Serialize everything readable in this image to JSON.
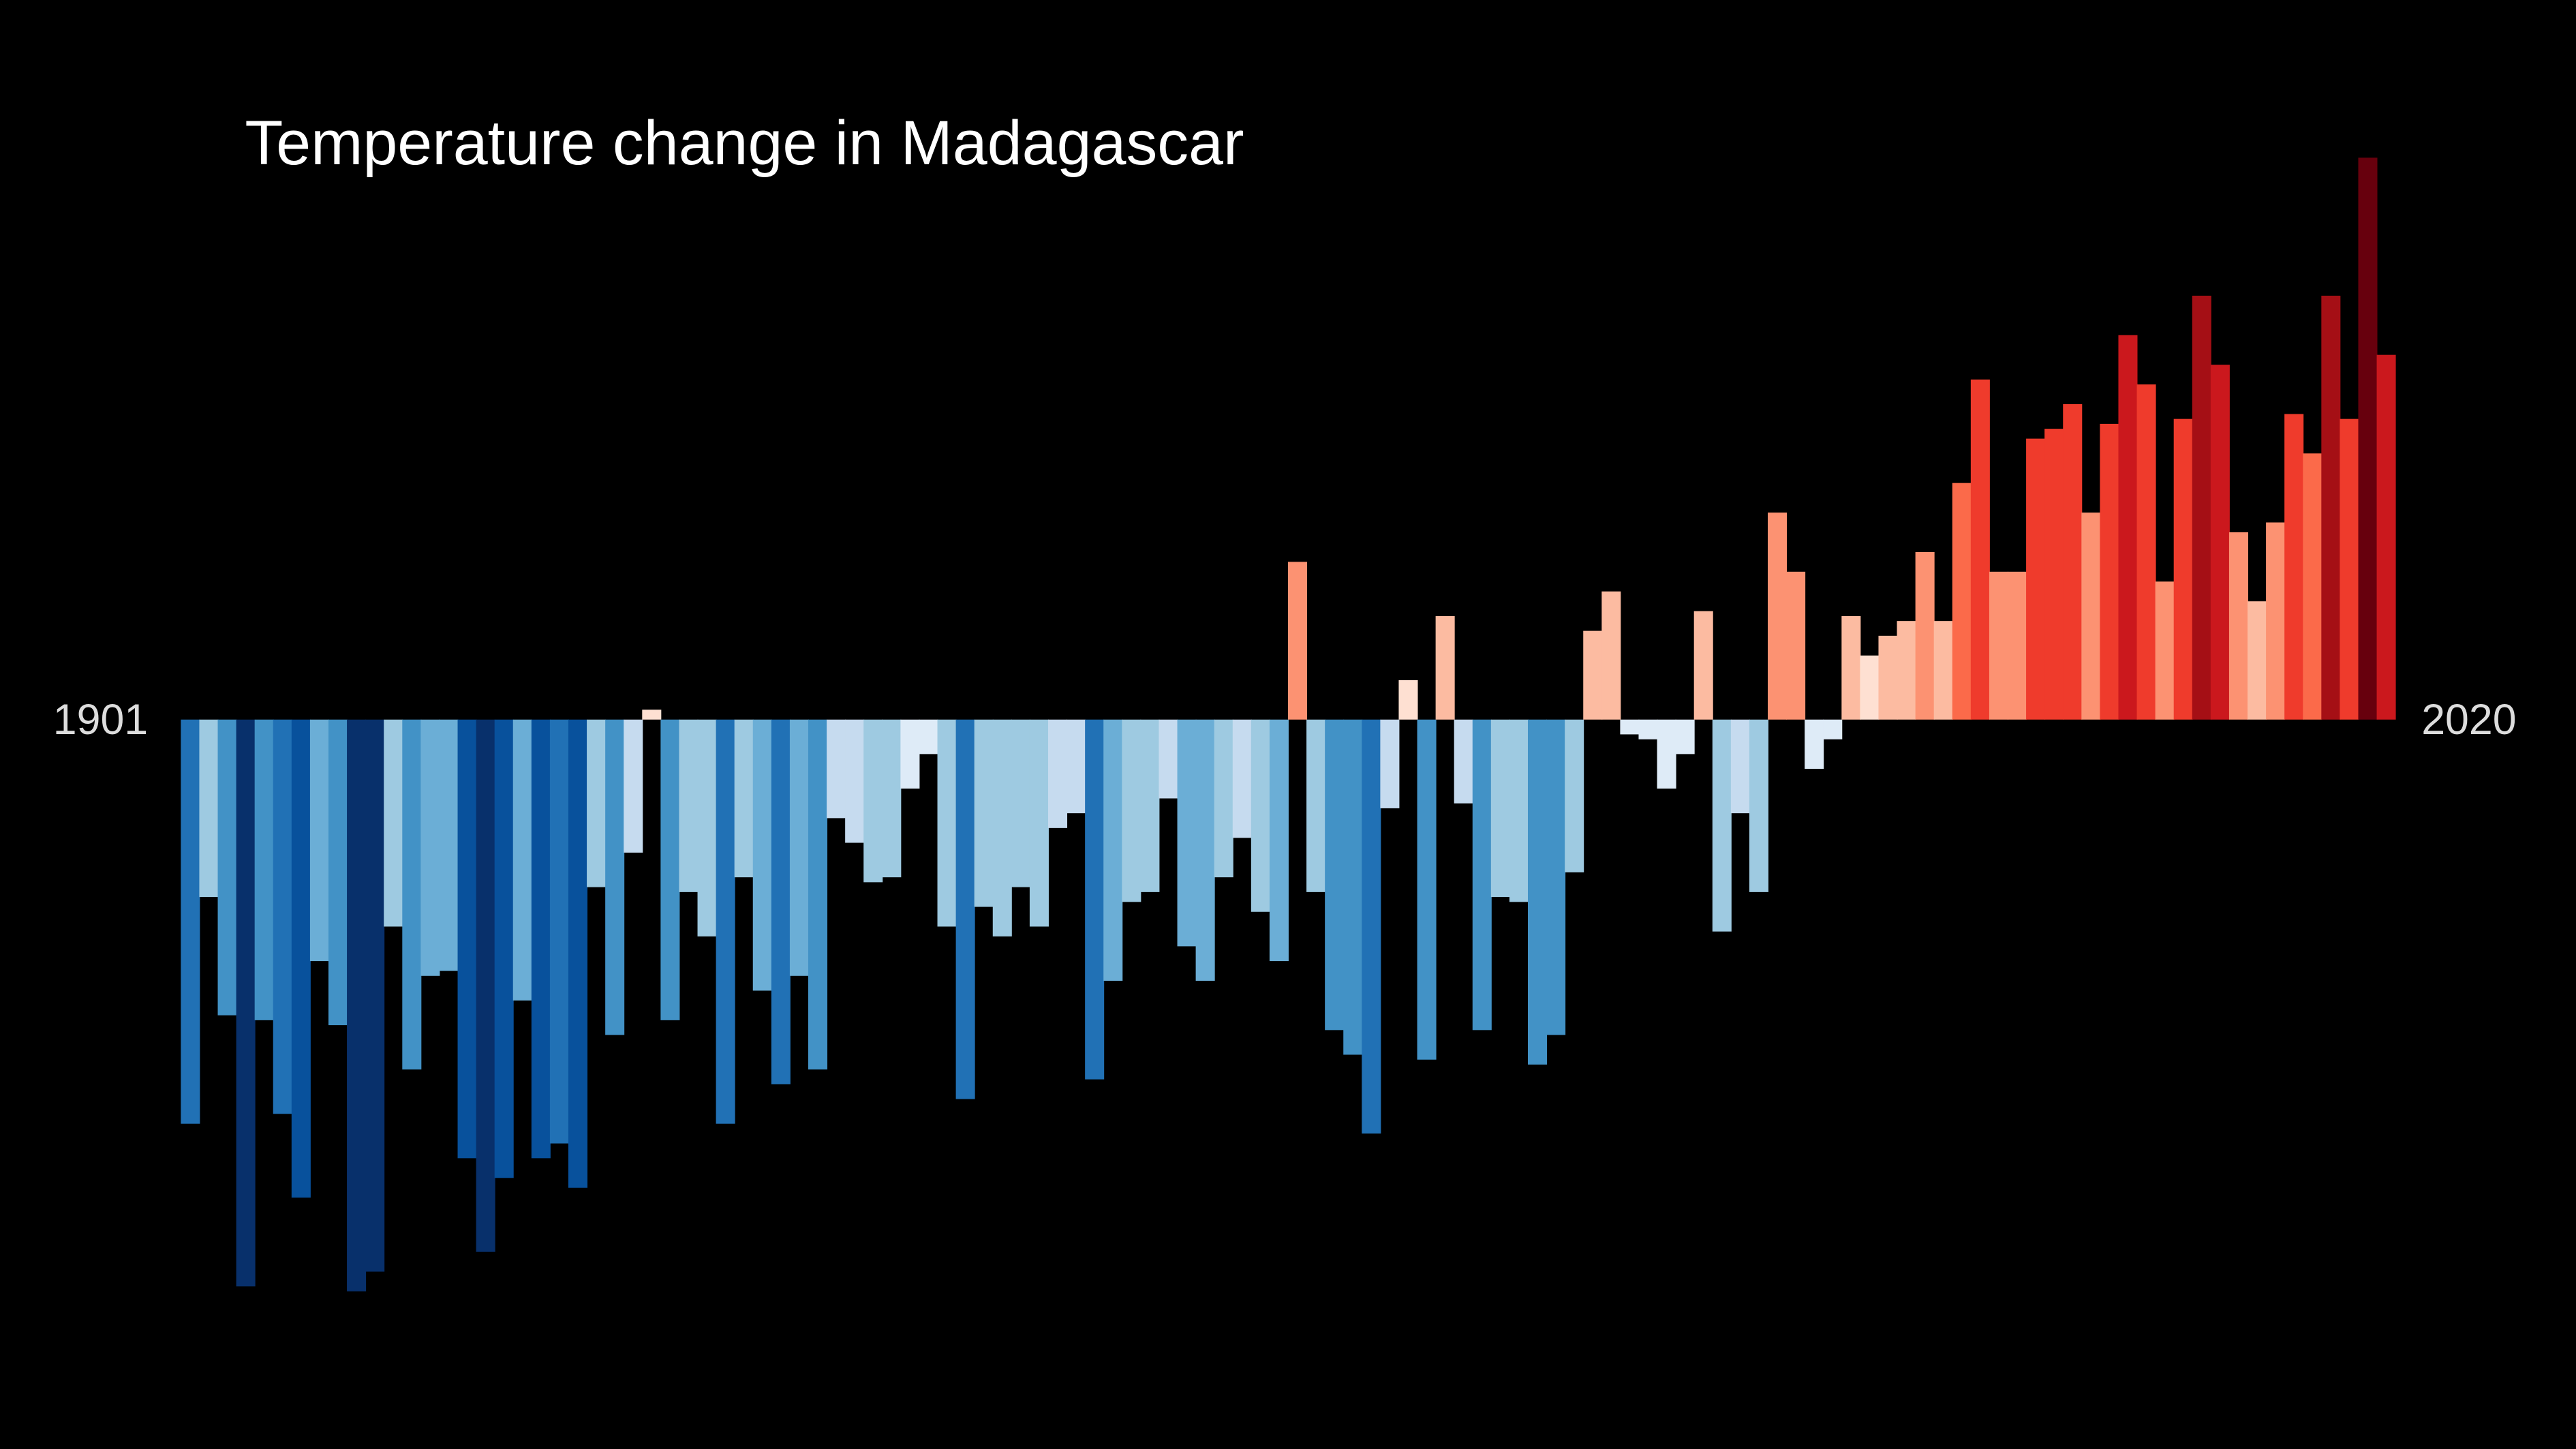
{
  "chart_data": {
    "type": "bar",
    "title": "Temperature change in Madagascar",
    "x": [
      1901,
      1902,
      1903,
      1904,
      1905,
      1906,
      1907,
      1908,
      1909,
      1910,
      1911,
      1912,
      1913,
      1914,
      1915,
      1916,
      1917,
      1918,
      1919,
      1920,
      1921,
      1922,
      1923,
      1924,
      1925,
      1926,
      1927,
      1928,
      1929,
      1930,
      1931,
      1932,
      1933,
      1934,
      1935,
      1936,
      1937,
      1938,
      1939,
      1940,
      1941,
      1942,
      1943,
      1944,
      1945,
      1946,
      1947,
      1948,
      1949,
      1950,
      1951,
      1952,
      1953,
      1954,
      1955,
      1956,
      1957,
      1958,
      1959,
      1960,
      1961,
      1962,
      1963,
      1964,
      1965,
      1966,
      1967,
      1968,
      1969,
      1970,
      1971,
      1972,
      1973,
      1974,
      1975,
      1976,
      1977,
      1978,
      1979,
      1980,
      1981,
      1982,
      1983,
      1984,
      1985,
      1986,
      1987,
      1988,
      1989,
      1990,
      1991,
      1992,
      1993,
      1994,
      1995,
      1996,
      1997,
      1998,
      1999,
      2000,
      2001,
      2002,
      2003,
      2004,
      2005,
      2006,
      2007,
      2008,
      2009,
      2010,
      2011,
      2012,
      2013,
      2014,
      2015,
      2016,
      2017,
      2018,
      2019,
      2020
    ],
    "values": [
      -0.82,
      -0.36,
      -0.6,
      -1.15,
      -0.61,
      -0.8,
      -0.97,
      -0.49,
      -0.62,
      -1.16,
      -1.12,
      -0.42,
      -0.71,
      -0.52,
      -0.51,
      -0.89,
      -1.08,
      -0.93,
      -0.57,
      -0.89,
      -0.86,
      -0.95,
      -0.34,
      -0.64,
      -0.27,
      0.02,
      -0.61,
      -0.35,
      -0.44,
      -0.82,
      -0.32,
      -0.55,
      -0.74,
      -0.52,
      -0.71,
      -0.2,
      -0.25,
      -0.33,
      -0.32,
      -0.14,
      -0.07,
      -0.42,
      -0.77,
      -0.38,
      -0.44,
      -0.34,
      -0.42,
      -0.22,
      -0.19,
      -0.73,
      -0.53,
      -0.37,
      -0.35,
      -0.16,
      -0.46,
      -0.53,
      -0.32,
      -0.24,
      -0.39,
      -0.49,
      0.32,
      -0.35,
      -0.63,
      -0.68,
      -0.84,
      -0.18,
      0.08,
      -0.69,
      0.21,
      -0.17,
      -0.63,
      -0.36,
      -0.37,
      -0.7,
      -0.64,
      -0.31,
      0.18,
      0.26,
      -0.03,
      -0.04,
      -0.14,
      -0.07,
      0.22,
      -0.43,
      -0.19,
      -0.35,
      0.42,
      0.3,
      -0.1,
      -0.04,
      0.21,
      0.13,
      0.17,
      0.2,
      0.34,
      0.2,
      0.48,
      0.69,
      0.3,
      0.3,
      0.57,
      0.59,
      0.64,
      0.42,
      0.6,
      0.78,
      0.68,
      0.28,
      0.61,
      0.86,
      0.72,
      0.38,
      0.24,
      0.4,
      0.62,
      0.54,
      0.86,
      0.61,
      1.14,
      0.74
    ],
    "xlim": [
      1900.5,
      2020.5
    ],
    "xticks": [
      1901,
      2020
    ],
    "ylim": [
      -1.48,
      1.46
    ],
    "colormap": [
      "#08306b",
      "#08519c",
      "#2171b5",
      "#4292c6",
      "#6baed6",
      "#9ecae1",
      "#c6dbef",
      "#deebf7",
      "#fee0d2",
      "#fcbba1",
      "#fc9272",
      "#fb6a4a",
      "#ef3b2c",
      "#cb181d",
      "#a50f15",
      "#67000d"
    ],
    "clim": [
      -1.16,
      1.14
    ],
    "background": "#000000"
  }
}
